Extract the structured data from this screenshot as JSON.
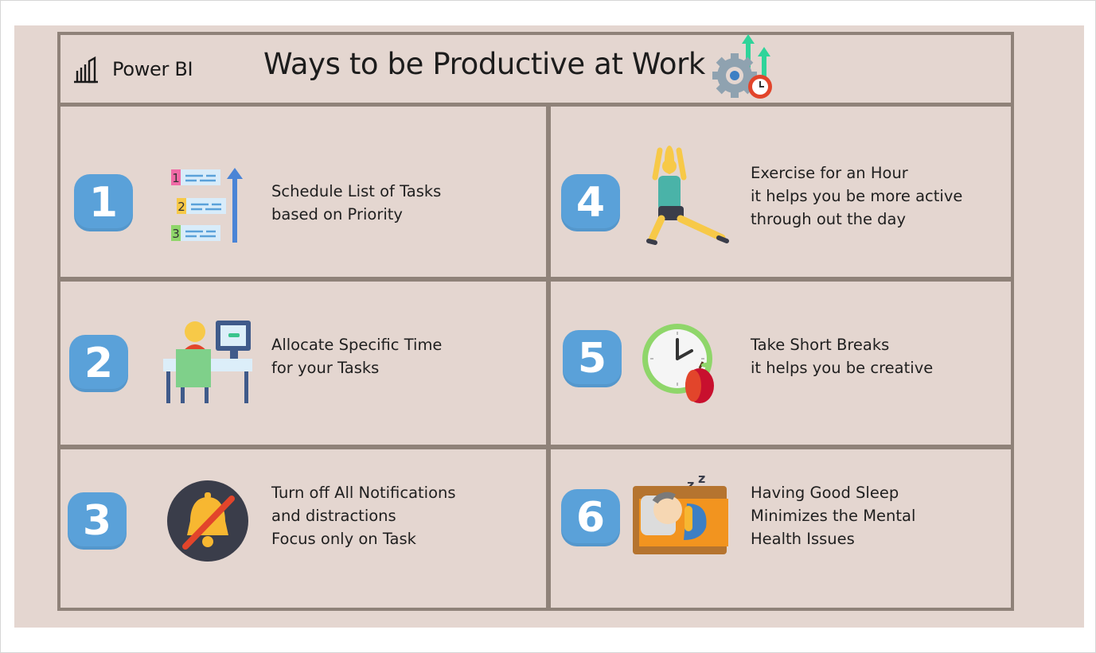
{
  "app": {
    "brand": "Power BI"
  },
  "header": {
    "title": "Ways to be Productive at Work"
  },
  "tips": [
    {
      "number": "1",
      "lines": [
        "Schedule List of Tasks",
        "based on Priority"
      ]
    },
    {
      "number": "2",
      "lines": [
        "Allocate Specific Time",
        "for your Tasks"
      ]
    },
    {
      "number": "3",
      "lines": [
        "Turn off All Notifications",
        "and distractions",
        "Focus only on Task"
      ]
    },
    {
      "number": "4",
      "lines": [
        "Exercise for an Hour",
        "it helps you be more active",
        "through out the day"
      ]
    },
    {
      "number": "5",
      "lines": [
        "Take Short Breaks",
        "it helps you be creative"
      ]
    },
    {
      "number": "6",
      "lines": [
        "Having Good Sleep",
        "Minimizes the Mental",
        "Health Issues"
      ]
    }
  ],
  "icons": {
    "logo": "power-bi-logo",
    "header": "productivity-gear-icon",
    "tip1": "priority-list-icon",
    "tip2": "desk-computer-icon",
    "tip3": "notification-off-icon",
    "tip4": "exercise-icon",
    "tip5": "break-clock-apple-icon",
    "tip6": "sleep-bed-icon"
  },
  "colors": {
    "background": "#e4d6d0",
    "border": "#8f8279",
    "badge": "#5aa1d9"
  }
}
